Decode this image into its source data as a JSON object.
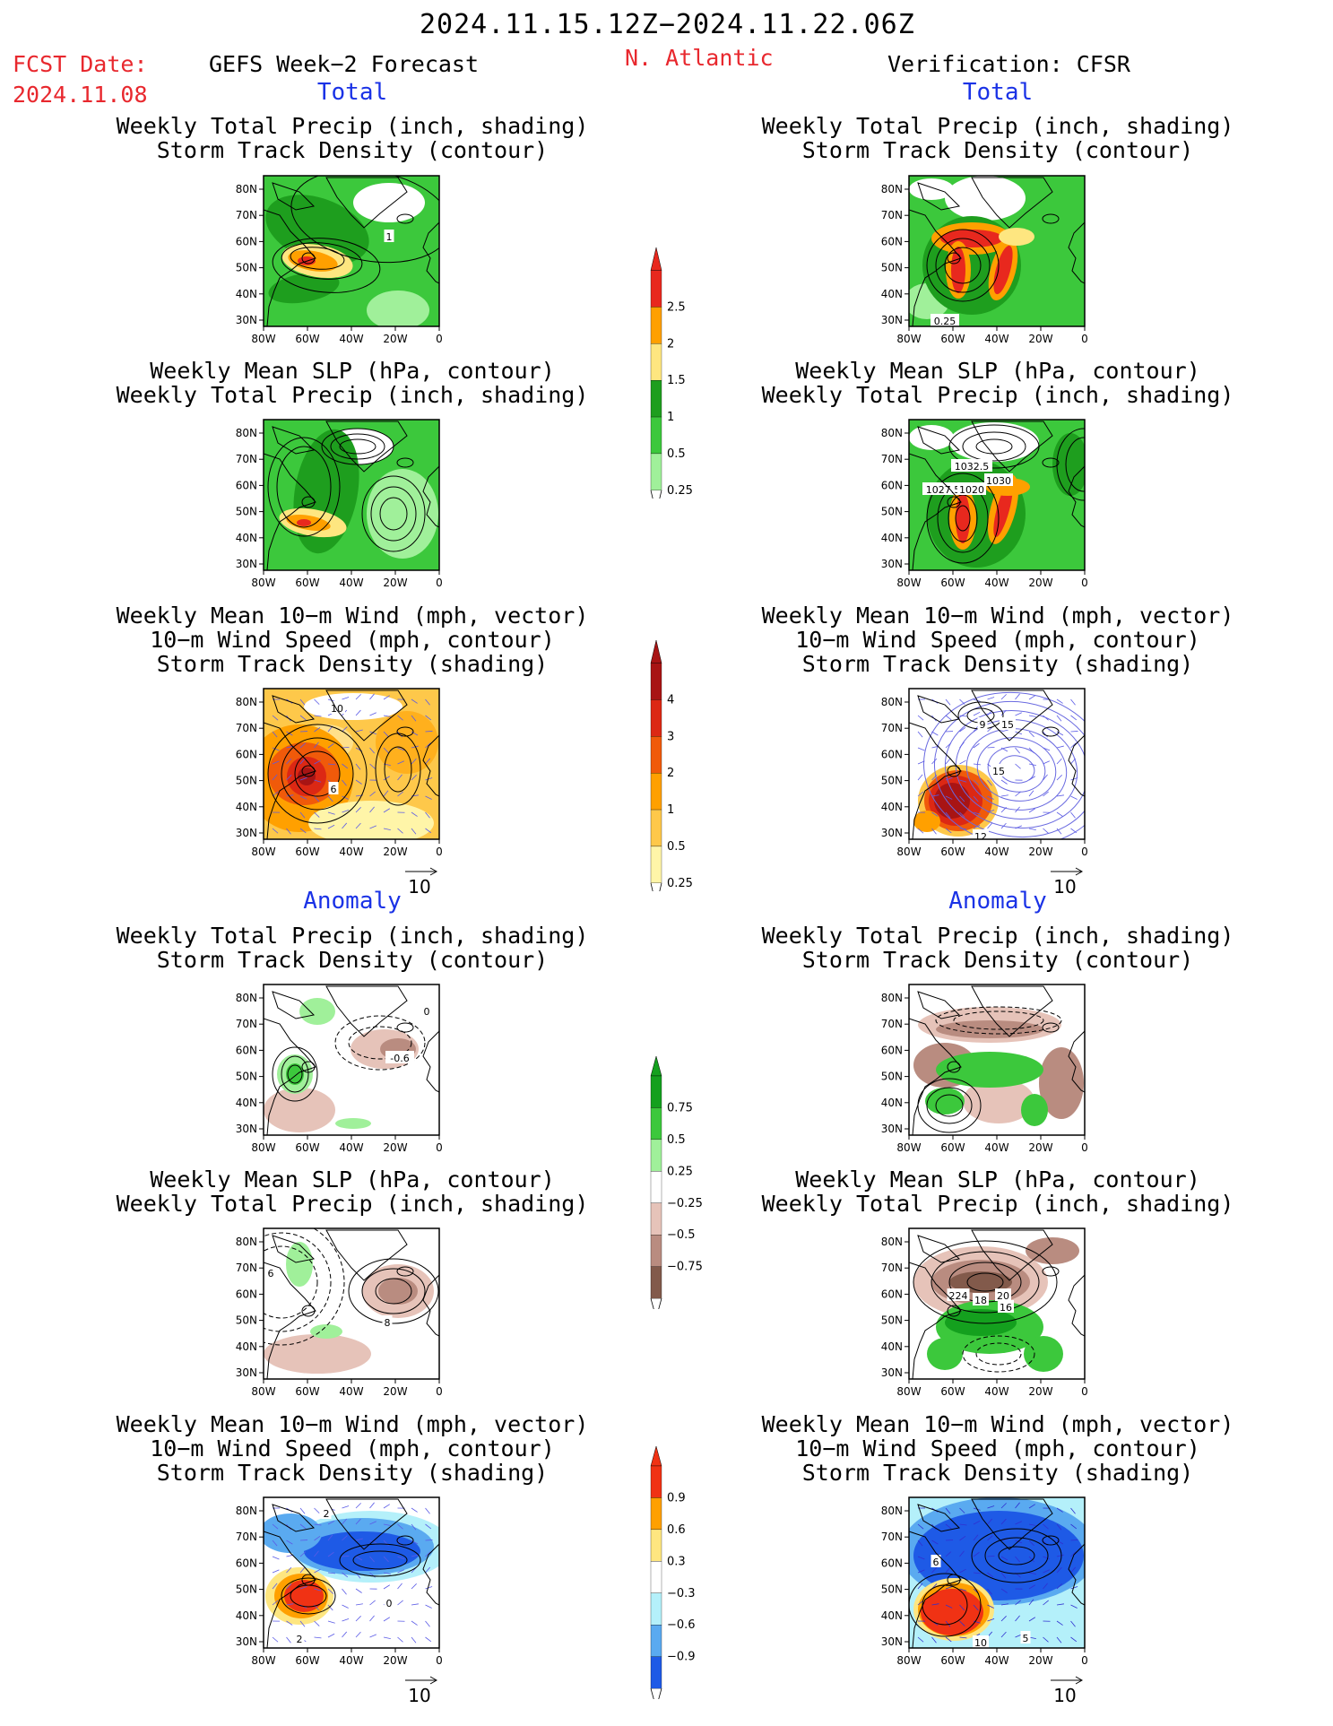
{
  "header": {
    "date_range": "2024.11.15.12Z−2024.11.22.06Z",
    "fcst_label": "FCST Date:",
    "fcst_date": "2024.11.08",
    "left_title": "GEFS Week−2 Forecast",
    "region": "N. Atlantic",
    "right_title": "Verification: CFSR"
  },
  "sections": {
    "total": "Total",
    "anomaly": "Anomaly"
  },
  "titles": {
    "precip_storm": [
      "Weekly Total Precip (inch, shading)",
      "Storm Track Density (contour)"
    ],
    "slp_precip": [
      "Weekly Mean SLP (hPa, contour)",
      "Weekly Total Precip (inch, shading)"
    ],
    "wind_storm": [
      "Weekly Mean 10−m Wind (mph, vector)",
      "10−m Wind Speed (mph, contour)",
      "Storm Track Density (shading)"
    ]
  },
  "axes": {
    "lat_labels": [
      "80N",
      "70N",
      "60N",
      "50N",
      "40N",
      "30N"
    ],
    "lon_labels": [
      "80W",
      "60W",
      "40W",
      "20W",
      "0"
    ]
  },
  "vector_ref": "10",
  "panel_labels": {
    "f_total_precip": [
      "1"
    ],
    "v_total_precip": [
      "0.25"
    ],
    "v_total_slp": [
      "1032.5",
      "1030",
      "1027.5",
      "1020"
    ],
    "f_total_wind": [
      "10",
      "6"
    ],
    "v_total_wind": [
      "9",
      "15",
      "15",
      "12"
    ],
    "f_anom_precip": [
      "0",
      "-0.6"
    ],
    "f_anom_slp": [
      "6",
      "8"
    ],
    "v_anom_slp": [
      "224",
      "18",
      "20",
      "16"
    ],
    "f_anom_wind": [
      "2",
      "0",
      "2"
    ],
    "v_anom_wind": [
      "6",
      "10",
      "5"
    ]
  },
  "colorbars": {
    "precip_total": {
      "values": [
        "2.5",
        "2",
        "1.5",
        "1",
        "0.5",
        "0.25"
      ],
      "colors": [
        "#e8281e",
        "#ffa000",
        "#fee680",
        "#1e9e1e",
        "#3cc83c",
        "#a0f09a"
      ]
    },
    "storm_total": {
      "values": [
        "4",
        "3",
        "2",
        "1",
        "0.5",
        "0.25"
      ],
      "colors": [
        "#a81414",
        "#dc2814",
        "#f05a0a",
        "#ffa000",
        "#fec84a",
        "#fff5a8"
      ]
    },
    "precip_anom": {
      "values": [
        "0.75",
        "0.5",
        "0.25",
        "−0.25",
        "−0.5",
        "−0.75"
      ],
      "colors": [
        "#14a01e",
        "#3cc83c",
        "#a0f09a",
        "#ffffff",
        "#e6c3b9",
        "#b98c80",
        "#825a4b"
      ]
    },
    "storm_anom": {
      "values": [
        "0.9",
        "0.6",
        "0.3",
        "−0.3",
        "−0.6",
        "−0.9"
      ],
      "colors": [
        "#f03214",
        "#ffa000",
        "#fee680",
        "#ffffff",
        "#b4f0fa",
        "#5aaaf0",
        "#1e5ae6"
      ]
    }
  },
  "colors": {
    "header_red": "#e8282e",
    "section_blue": "#1a32e6",
    "land_outline": "#000000"
  }
}
